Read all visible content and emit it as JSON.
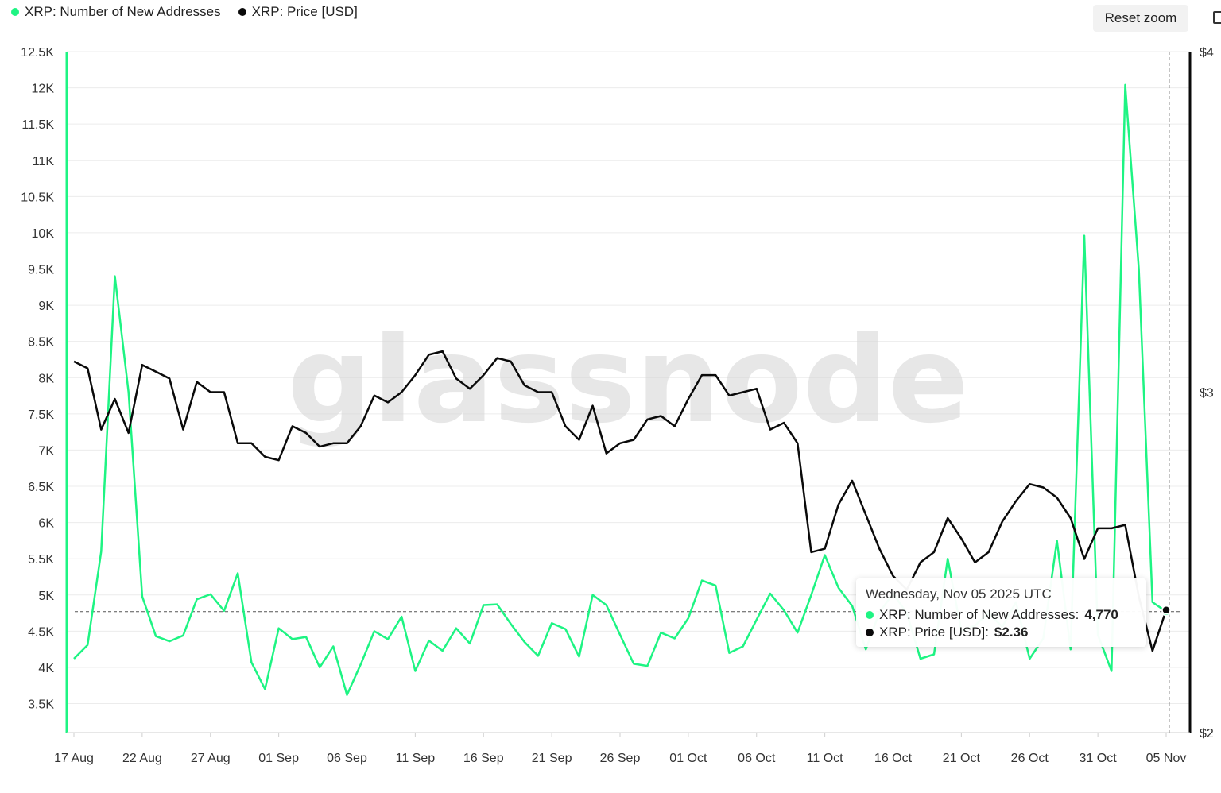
{
  "legend": {
    "series1": "XRP: Number of New Addresses",
    "series2": "XRP: Price [USD]"
  },
  "toolbar": {
    "reset_zoom_label": "Reset zoom"
  },
  "watermark": "glassnode",
  "colors": {
    "addresses": "#1ef483",
    "price": "#0a0a0a"
  },
  "tooltip": {
    "date": "Wednesday, Nov 05 2025 UTC",
    "row1_label": "XRP: Number of New Addresses:",
    "row1_value": "4,770",
    "row2_label": "XRP: Price [USD]:",
    "row2_value": "$2.36"
  },
  "chart_data": {
    "type": "line",
    "x_tick_labels": [
      "17 Aug",
      "22 Aug",
      "27 Aug",
      "01 Sep",
      "06 Sep",
      "11 Sep",
      "16 Sep",
      "21 Sep",
      "26 Sep",
      "01 Oct",
      "06 Oct",
      "11 Oct",
      "16 Oct",
      "21 Oct",
      "26 Oct",
      "31 Oct",
      "05 Nov"
    ],
    "y_left_ticks": [
      "3.5K",
      "4K",
      "4.5K",
      "5K",
      "5.5K",
      "6K",
      "6.5K",
      "7K",
      "7.5K",
      "8K",
      "8.5K",
      "9K",
      "9.5K",
      "10K",
      "10.5K",
      "11K",
      "11.5K",
      "12K",
      "12.5K"
    ],
    "y_left_range": [
      3100,
      12500
    ],
    "y_right_ticks": [
      "$2",
      "$3",
      "$4"
    ],
    "y_right_range": [
      2,
      4
    ],
    "x_range_days": [
      0,
      80
    ],
    "series": [
      {
        "name": "XRP: Number of New Addresses",
        "axis": "left",
        "values": [
          4120,
          4310,
          5600,
          9400,
          7800,
          4980,
          4430,
          4360,
          4440,
          4940,
          5010,
          4780,
          5300,
          4070,
          3700,
          4540,
          4390,
          4420,
          4000,
          4290,
          3620,
          4040,
          4500,
          4390,
          4700,
          3950,
          4370,
          4230,
          4540,
          4330,
          4860,
          4870,
          4600,
          4350,
          4160,
          4610,
          4530,
          4150,
          5000,
          4860,
          4450,
          4050,
          4020,
          4480,
          4400,
          4680,
          5200,
          5130,
          4200,
          4290,
          4660,
          5020,
          4790,
          4480,
          5000,
          5550,
          5100,
          4850,
          4250,
          4760,
          5020,
          4750,
          4120,
          4180,
          5500,
          4500,
          4580,
          4750,
          4560,
          4900,
          4120,
          4400,
          5750,
          4250,
          9960,
          4450,
          3950,
          12040,
          9500,
          4900,
          4770
        ]
      },
      {
        "name": "XRP: Price [USD]",
        "axis": "right",
        "values": [
          3.09,
          3.07,
          2.89,
          2.98,
          2.88,
          3.08,
          3.06,
          3.04,
          2.89,
          3.03,
          3.0,
          3.0,
          2.85,
          2.85,
          2.81,
          2.8,
          2.9,
          2.88,
          2.84,
          2.85,
          2.85,
          2.9,
          2.99,
          2.97,
          3.0,
          3.05,
          3.11,
          3.12,
          3.04,
          3.01,
          3.05,
          3.1,
          3.09,
          3.02,
          3.0,
          3.0,
          2.9,
          2.86,
          2.96,
          2.82,
          2.85,
          2.86,
          2.92,
          2.93,
          2.9,
          2.98,
          3.05,
          3.05,
          2.99,
          3.0,
          3.01,
          2.89,
          2.91,
          2.85,
          2.53,
          2.54,
          2.67,
          2.74,
          2.64,
          2.54,
          2.46,
          2.42,
          2.5,
          2.53,
          2.63,
          2.57,
          2.5,
          2.53,
          2.62,
          2.68,
          2.73,
          2.72,
          2.69,
          2.63,
          2.51,
          2.6,
          2.6,
          2.61,
          2.4,
          2.24,
          2.36
        ]
      }
    ],
    "crosshair_value": 4770,
    "grid": true,
    "legend_position": "top-left"
  }
}
